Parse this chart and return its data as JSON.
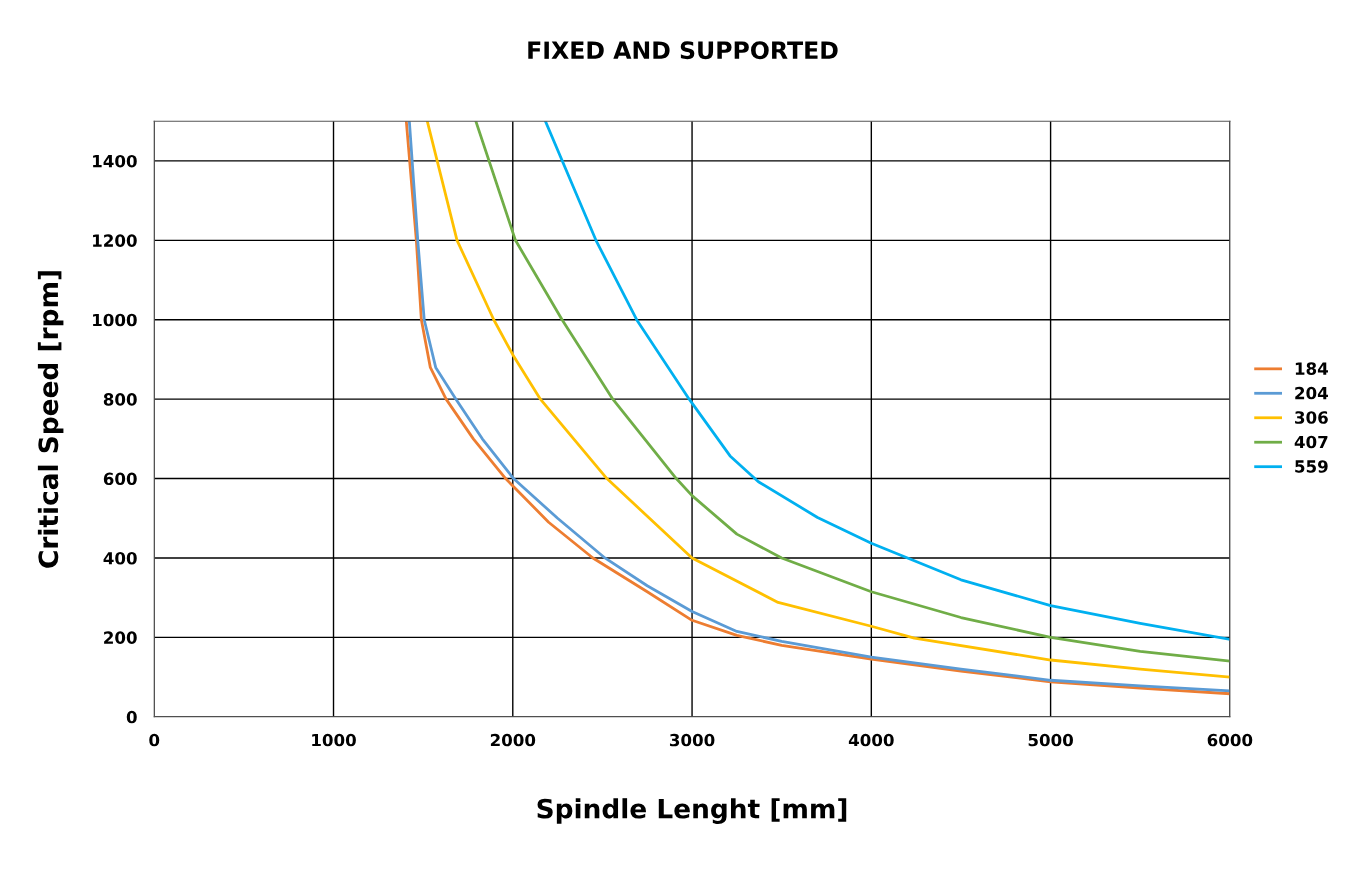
{
  "chart_data": {
    "type": "line",
    "title": "FIXED AND SUPPORTED",
    "xlabel": "Spindle Lenght [mm]",
    "ylabel": "Critical Speed [rpm]",
    "xlim": [
      0,
      6000
    ],
    "xticks": [
      0,
      1000,
      2000,
      3000,
      4000,
      5000,
      6000
    ],
    "ylim": [
      0,
      1500
    ],
    "yticks": [
      0,
      200,
      400,
      600,
      800,
      1000,
      1200,
      1400
    ],
    "grid": true,
    "legend": "right",
    "marker": "none",
    "line_style": "solid",
    "series": [
      {
        "name": "184",
        "color": "#ed7d31",
        "x": [
          1406,
          1462,
          1490,
          1540,
          1628,
          1780,
          1960,
          2200,
          2447,
          2750,
          3000,
          3250,
          3500,
          4000,
          4500,
          5000,
          5500,
          6000
        ],
        "values": [
          1500,
          1200,
          1000,
          880,
          800,
          700,
          600,
          490,
          400,
          315,
          243,
          205,
          180,
          145,
          115,
          88,
          72,
          58
        ]
      },
      {
        "name": "204",
        "color": "#5b9bd5",
        "x": [
          1423,
          1470,
          1506,
          1570,
          1683,
          1830,
          2004,
          2250,
          2514,
          2750,
          3000,
          3250,
          3500,
          4000,
          4500,
          5000,
          5500,
          6000
        ],
        "values": [
          1500,
          1200,
          1000,
          880,
          800,
          700,
          600,
          500,
          400,
          330,
          265,
          215,
          190,
          150,
          120,
          92,
          78,
          65
        ]
      },
      {
        "name": "306",
        "color": "#ffc000",
        "x": [
          1523,
          1689,
          1894,
          2000,
          2154,
          2525,
          3000,
          3480,
          4000,
          4240,
          5000,
          5500,
          6000
        ],
        "values": [
          1500,
          1200,
          1000,
          912,
          800,
          600,
          400,
          288,
          228,
          198,
          143,
          120,
          100
        ]
      },
      {
        "name": "407",
        "color": "#70ad47",
        "x": [
          1794,
          2015,
          2275,
          2558,
          2912,
          3000,
          3250,
          3500,
          4000,
          4500,
          5000,
          5500,
          6000
        ],
        "values": [
          1500,
          1200,
          1000,
          800,
          600,
          557,
          460,
          400,
          315,
          250,
          200,
          165,
          140
        ]
      },
      {
        "name": "559",
        "color": "#00b0f0",
        "x": [
          2182,
          2464,
          2691,
          2984,
          3212,
          3370,
          3700,
          4000,
          4500,
          5000,
          5500,
          6000
        ],
        "values": [
          1500,
          1200,
          1000,
          800,
          657,
          592,
          502,
          437,
          345,
          280,
          235,
          195
        ]
      }
    ]
  }
}
